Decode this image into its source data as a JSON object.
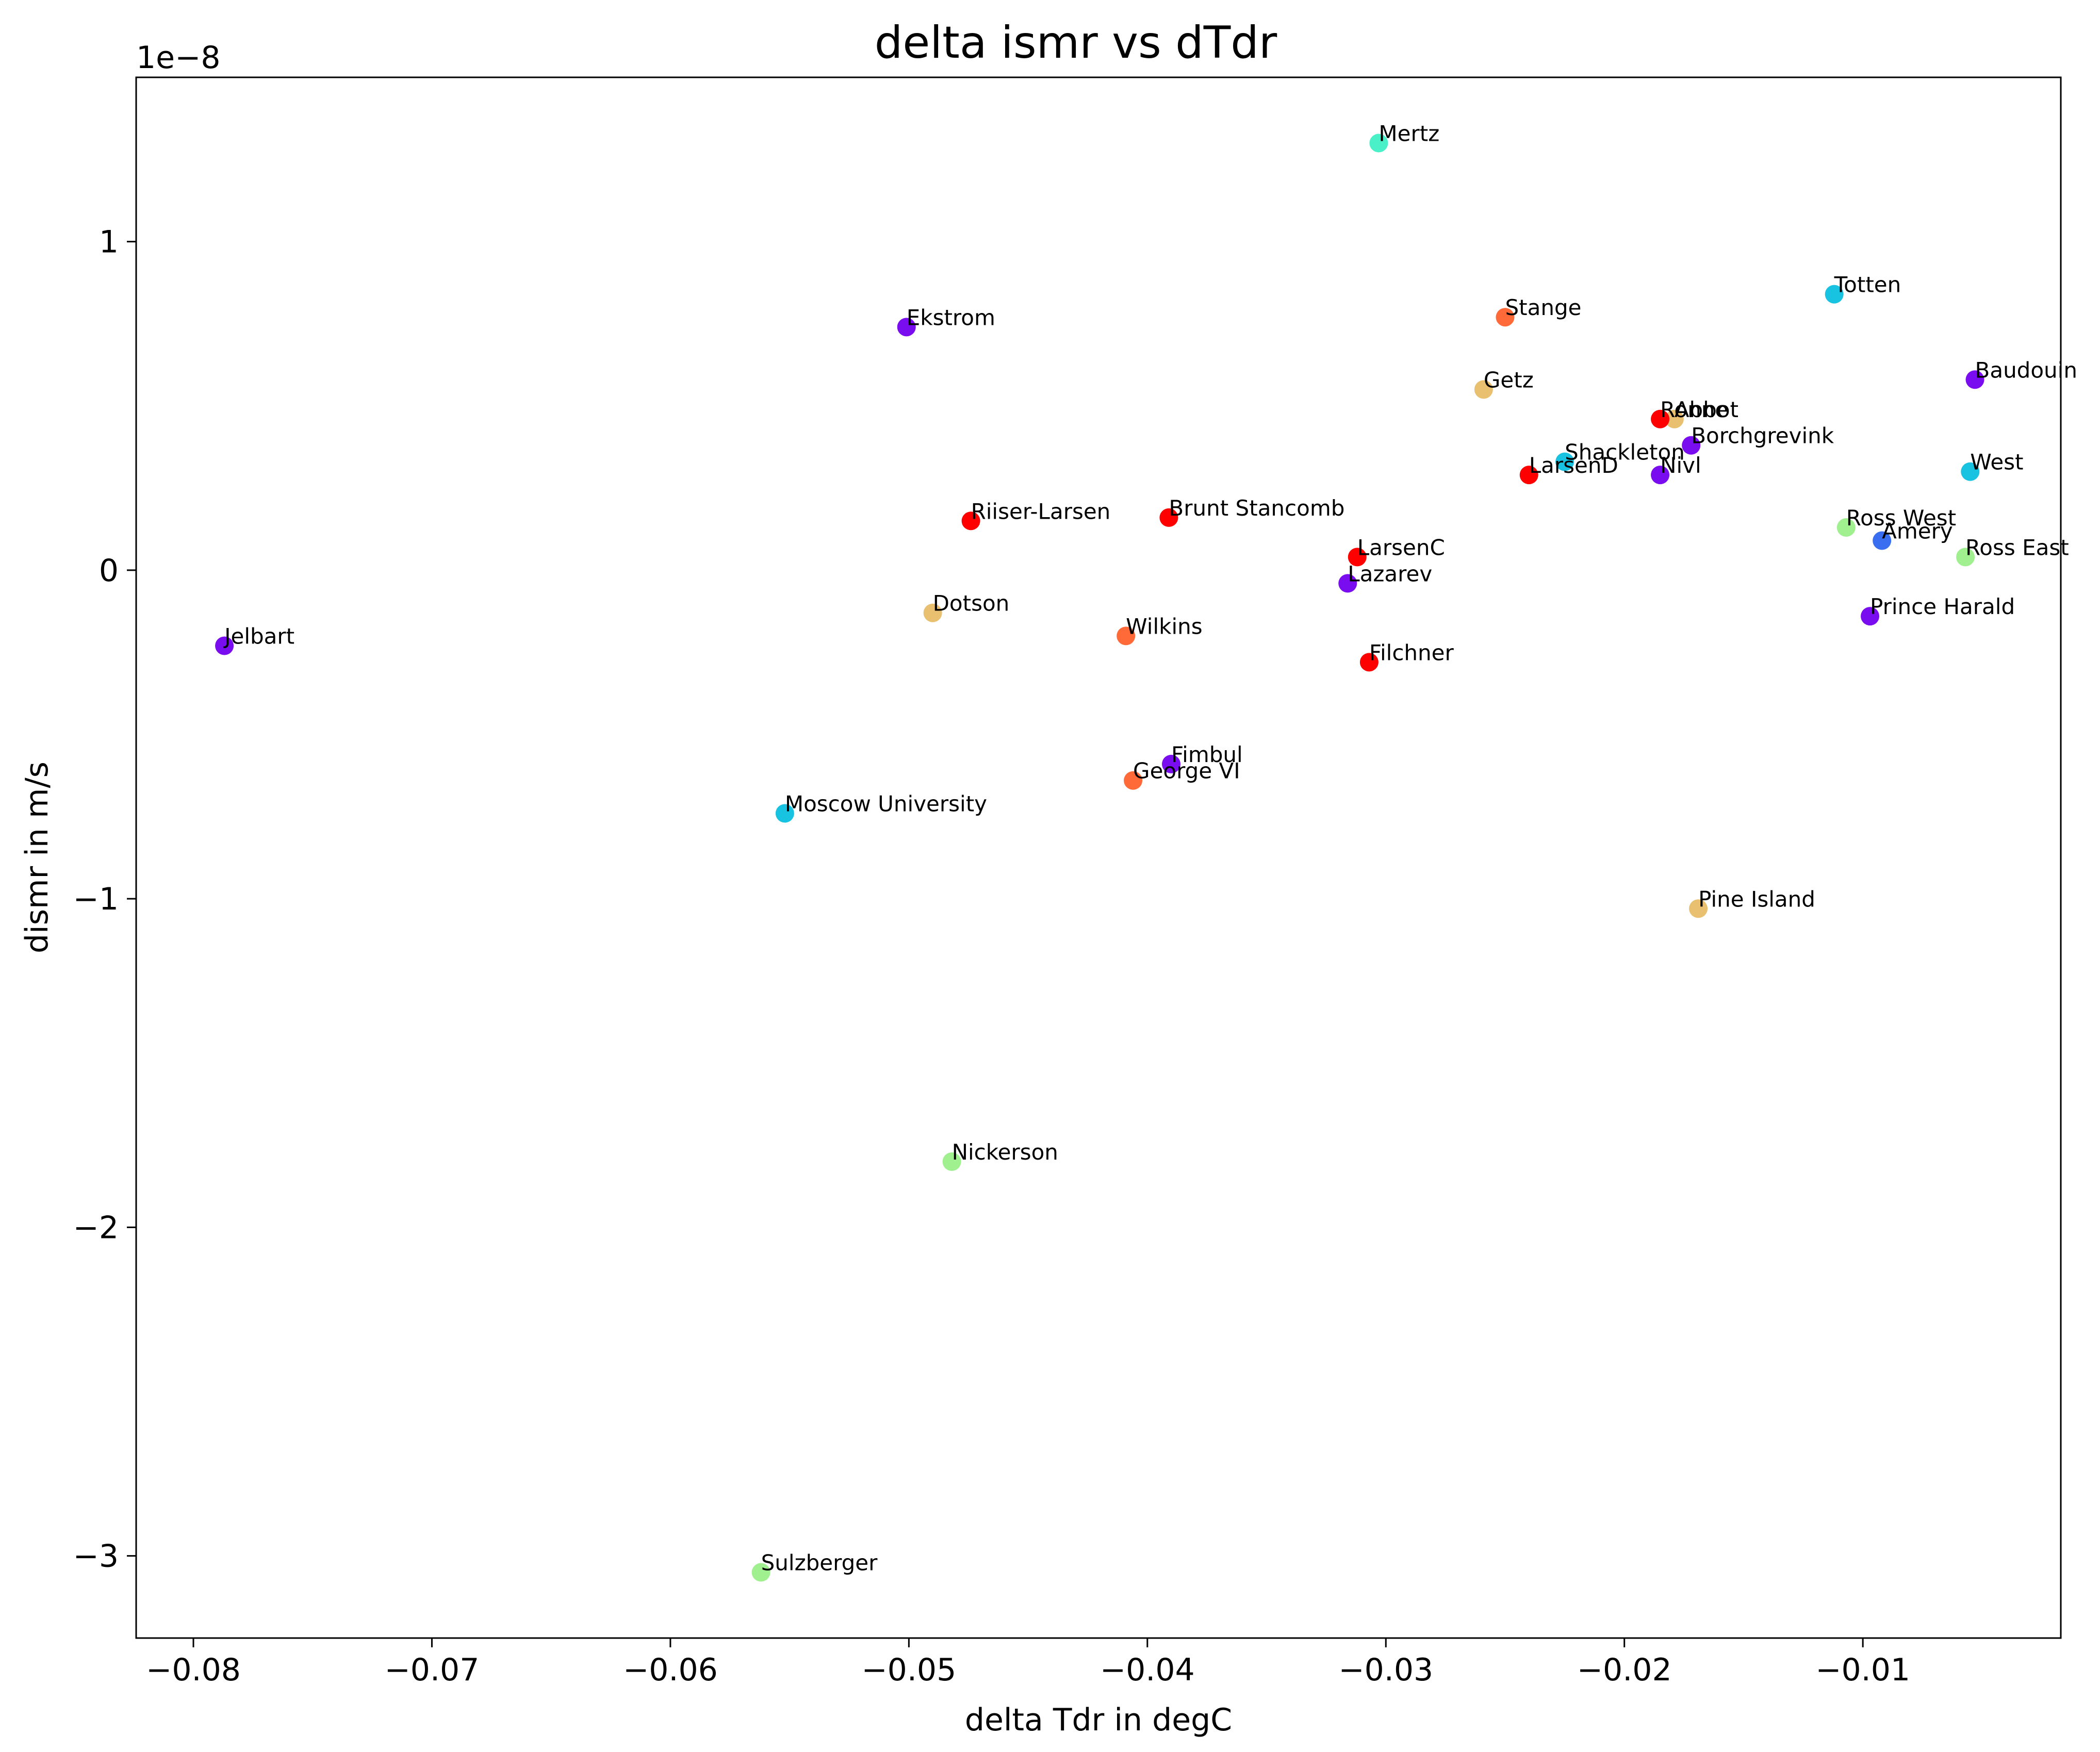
{
  "chart_data": {
    "type": "scatter",
    "title": "delta ismr vs dTdr",
    "xlabel": "delta Tdr in degC",
    "ylabel": "dismr in m/s",
    "y_offset_label": "1e−8",
    "xlim": [
      -0.0824,
      -0.0017
    ],
    "ylim": [
      -3.25,
      1.5
    ],
    "xticks": [
      -0.08,
      -0.07,
      -0.06,
      -0.05,
      -0.04,
      -0.03,
      -0.02,
      -0.01
    ],
    "xtick_labels": [
      "−0.08",
      "−0.07",
      "−0.06",
      "−0.05",
      "−0.04",
      "−0.03",
      "−0.02",
      "−0.01"
    ],
    "yticks": [
      -3,
      -2,
      -1,
      0,
      1
    ],
    "ytick_labels": [
      "−3",
      "−2",
      "−1",
      "0",
      "1"
    ],
    "grid": false,
    "points": [
      {
        "label": "Mertz",
        "x": -0.0303,
        "y": 1.3,
        "color": "#4af0c8"
      },
      {
        "label": "Totten",
        "x": -0.0112,
        "y": 0.84,
        "color": "#17c3e0"
      },
      {
        "label": "Ekstrom",
        "x": -0.0501,
        "y": 0.74,
        "color": "#7a0cf0"
      },
      {
        "label": "Stange",
        "x": -0.025,
        "y": 0.77,
        "color": "#ff6a38"
      },
      {
        "label": "Getz",
        "x": -0.0259,
        "y": 0.55,
        "color": "#e8c070"
      },
      {
        "label": "Baudouin",
        "x": -0.0053,
        "y": 0.58,
        "color": "#7a0cf0"
      },
      {
        "label": "Abbot",
        "x": -0.0179,
        "y": 0.46,
        "color": "#e8c070"
      },
      {
        "label": "Ronne",
        "x": -0.0185,
        "y": 0.46,
        "color": "#ff0000"
      },
      {
        "label": "Borchgrevink",
        "x": -0.0172,
        "y": 0.38,
        "color": "#7a0cf0"
      },
      {
        "label": "Shackleton",
        "x": -0.0225,
        "y": 0.33,
        "color": "#17c3e0"
      },
      {
        "label": "LarsenD",
        "x": -0.024,
        "y": 0.29,
        "color": "#ff0000"
      },
      {
        "label": "Nivl",
        "x": -0.0185,
        "y": 0.29,
        "color": "#7a0cf0"
      },
      {
        "label": "West",
        "x": -0.0055,
        "y": 0.3,
        "color": "#17c3e0"
      },
      {
        "label": "Riiser-Larsen",
        "x": -0.0474,
        "y": 0.15,
        "color": "#ff0000"
      },
      {
        "label": "Brunt Stancomb",
        "x": -0.0391,
        "y": 0.16,
        "color": "#ff0000"
      },
      {
        "label": "Ross West",
        "x": -0.0107,
        "y": 0.13,
        "color": "#a0f090"
      },
      {
        "label": "Amery",
        "x": -0.0092,
        "y": 0.09,
        "color": "#3a6ef0"
      },
      {
        "label": "Ross East",
        "x": -0.0057,
        "y": 0.04,
        "color": "#a0f090"
      },
      {
        "label": "LarsenC",
        "x": -0.0312,
        "y": 0.04,
        "color": "#ff0000"
      },
      {
        "label": "Lazarev",
        "x": -0.0316,
        "y": -0.04,
        "color": "#7a0cf0"
      },
      {
        "label": "Dotson",
        "x": -0.049,
        "y": -0.13,
        "color": "#e8c070"
      },
      {
        "label": "Prince Harald",
        "x": -0.0097,
        "y": -0.14,
        "color": "#7a0cf0"
      },
      {
        "label": "Wilkins",
        "x": -0.0409,
        "y": -0.2,
        "color": "#ff6a38"
      },
      {
        "label": "Jelbart",
        "x": -0.0787,
        "y": -0.23,
        "color": "#7a0cf0"
      },
      {
        "label": "Filchner",
        "x": -0.0307,
        "y": -0.28,
        "color": "#ff0000"
      },
      {
        "label": "Fimbul",
        "x": -0.039,
        "y": -0.59,
        "color": "#7a0cf0"
      },
      {
        "label": "George VI",
        "x": -0.0406,
        "y": -0.64,
        "color": "#ff6a38"
      },
      {
        "label": "Moscow University",
        "x": -0.0552,
        "y": -0.74,
        "color": "#17c3e0"
      },
      {
        "label": "Pine Island",
        "x": -0.0169,
        "y": -1.03,
        "color": "#e8c070"
      },
      {
        "label": "Nickerson",
        "x": -0.0482,
        "y": -1.8,
        "color": "#a0f090"
      },
      {
        "label": "Sulzberger",
        "x": -0.0562,
        "y": -3.05,
        "color": "#a0f090"
      }
    ]
  }
}
